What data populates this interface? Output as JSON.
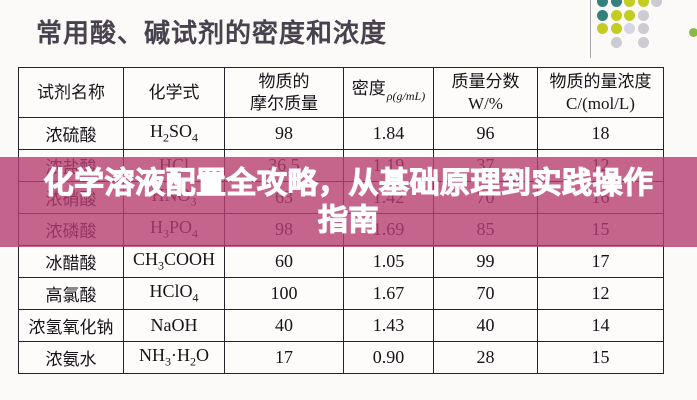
{
  "page": {
    "title": "常用酸、碱试剂的密度和浓度"
  },
  "overlay": {
    "line1": "化学溶液配置全攻略，从基础原理到实践操作",
    "line2": "指南",
    "banner_color": "#b73e70",
    "text_color": "#ffffff"
  },
  "table": {
    "headers": [
      {
        "lines": [
          "试剂名称"
        ]
      },
      {
        "lines": [
          "化学式"
        ]
      },
      {
        "lines": [
          "物质的",
          "摩尔质量"
        ]
      },
      {
        "lines": [
          "密度"
        ],
        "sub": "ρ(g/mL)"
      },
      {
        "lines": [
          "质量分数",
          "W/%"
        ]
      },
      {
        "lines": [
          "物质的量浓度",
          "C/(mol/L)"
        ]
      }
    ]
  },
  "chart_data": {
    "type": "table",
    "title": "常用酸、碱试剂的密度和浓度",
    "columns": [
      "试剂名称",
      "化学式",
      "物质的摩尔质量",
      "密度 ρ(g/mL)",
      "质量分数 W/%",
      "物质的量浓度 C/(mol/L)"
    ],
    "rows": [
      [
        "浓硫酸",
        "H2SO4",
        "98",
        "1.84",
        "96",
        "18"
      ],
      [
        "浓盐酸",
        "HCl",
        "36.5",
        "1.19",
        "37",
        "12"
      ],
      [
        "浓硝酸",
        "HNO3",
        "63",
        "1.42",
        "70",
        "16"
      ],
      [
        "浓磷酸",
        "H3PO4",
        "98",
        "1.69",
        "85",
        "15"
      ],
      [
        "冰醋酸",
        "CH3COOH",
        "60",
        "1.05",
        "99",
        "17"
      ],
      [
        "高氯酸",
        "HClO4",
        "100",
        "1.67",
        "70",
        "12"
      ],
      [
        "浓氢氧化钠",
        "NaOH",
        "40",
        "1.43",
        "40",
        "14"
      ],
      [
        "浓氨水",
        "NH3·H2O",
        "17",
        "0.90",
        "28",
        "15"
      ]
    ]
  },
  "decor": {
    "dot_colors": {
      "teal": "#35807d",
      "chartreuse": "#c3cc21",
      "gray": "#cccbd2",
      "lavender": "#d7d6e7",
      "green": "#86ba40"
    },
    "dot_grid": [
      [
        "teal",
        "teal",
        "chartreuse",
        "chartreuse",
        "gray"
      ],
      [
        "teal",
        "chartreuse",
        "chartreuse",
        "gray",
        ""
      ],
      [
        "chartreuse",
        "chartreuse",
        "lavender",
        "gray",
        ""
      ],
      [
        "",
        "gray",
        "",
        "gray",
        ""
      ]
    ]
  }
}
